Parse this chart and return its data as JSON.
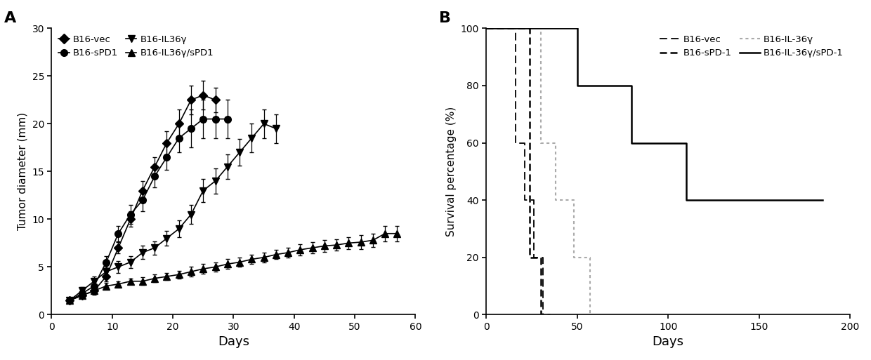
{
  "panel_A": {
    "label": "A",
    "xlabel": "Days",
    "ylabel": "Tumor diameter (mm)",
    "xlim": [
      2,
      60
    ],
    "ylim": [
      0,
      30
    ],
    "xticks": [
      0,
      10,
      20,
      30,
      40,
      50,
      60
    ],
    "yticks": [
      0,
      5,
      10,
      15,
      20,
      25,
      30
    ],
    "series": [
      {
        "label": "B16-vec",
        "marker": "D",
        "color": "#000000",
        "x": [
          3,
          5,
          7,
          9,
          11,
          13,
          15,
          17,
          19,
          21,
          23,
          25,
          27
        ],
        "y": [
          1.5,
          2.0,
          2.5,
          4.0,
          7.0,
          10.0,
          13.0,
          15.5,
          18.0,
          20.0,
          22.5,
          23.0,
          22.5
        ],
        "yerr": [
          0.3,
          0.3,
          0.4,
          0.5,
          0.6,
          0.8,
          1.0,
          1.0,
          1.2,
          1.5,
          1.5,
          1.5,
          1.3
        ]
      },
      {
        "label": "B16-sPD1",
        "marker": "o",
        "color": "#000000",
        "x": [
          3,
          5,
          7,
          9,
          11,
          13,
          15,
          17,
          19,
          21,
          23,
          25,
          27,
          29
        ],
        "y": [
          1.5,
          2.2,
          3.0,
          5.5,
          8.5,
          10.5,
          12.0,
          14.5,
          16.5,
          18.5,
          19.5,
          20.5,
          20.5,
          20.5
        ],
        "yerr": [
          0.3,
          0.3,
          0.5,
          0.6,
          0.8,
          1.0,
          1.2,
          1.2,
          1.3,
          1.5,
          2.0,
          2.0,
          2.0,
          2.0
        ]
      },
      {
        "label": "B16-IL36γ",
        "marker": "v",
        "color": "#000000",
        "x": [
          3,
          5,
          7,
          9,
          11,
          13,
          15,
          17,
          19,
          21,
          23,
          25,
          27,
          29,
          31,
          33,
          35,
          37
        ],
        "y": [
          1.5,
          2.5,
          3.5,
          4.5,
          5.0,
          5.5,
          6.5,
          7.0,
          8.0,
          9.0,
          10.5,
          13.0,
          14.0,
          15.5,
          17.0,
          18.5,
          20.0,
          19.5
        ],
        "yerr": [
          0.3,
          0.4,
          0.5,
          0.5,
          0.6,
          0.6,
          0.7,
          0.7,
          0.8,
          0.9,
          1.0,
          1.2,
          1.3,
          1.3,
          1.4,
          1.5,
          1.5,
          1.5
        ]
      },
      {
        "label": "B16-IL36γ/sPD1",
        "marker": "^",
        "color": "#000000",
        "x": [
          3,
          5,
          7,
          9,
          11,
          13,
          15,
          17,
          19,
          21,
          23,
          25,
          27,
          29,
          31,
          33,
          35,
          37,
          39,
          41,
          43,
          45,
          47,
          49,
          51,
          53,
          55,
          57
        ],
        "y": [
          1.5,
          2.0,
          2.5,
          3.0,
          3.2,
          3.5,
          3.5,
          3.8,
          4.0,
          4.2,
          4.5,
          4.8,
          5.0,
          5.3,
          5.5,
          5.8,
          6.0,
          6.3,
          6.5,
          6.8,
          7.0,
          7.2,
          7.3,
          7.5,
          7.6,
          7.8,
          8.5,
          8.5
        ],
        "yerr": [
          0.2,
          0.3,
          0.3,
          0.3,
          0.3,
          0.3,
          0.4,
          0.4,
          0.4,
          0.4,
          0.5,
          0.5,
          0.5,
          0.5,
          0.5,
          0.5,
          0.5,
          0.5,
          0.5,
          0.6,
          0.6,
          0.6,
          0.6,
          0.6,
          0.7,
          0.7,
          0.8,
          0.8
        ]
      }
    ]
  },
  "panel_B": {
    "label": "B",
    "xlabel": "Days",
    "ylabel": "Survival percentage (%)",
    "xlim": [
      0,
      200
    ],
    "ylim": [
      0,
      100
    ],
    "xticks": [
      0,
      50,
      100,
      150,
      200
    ],
    "yticks": [
      0,
      20,
      40,
      60,
      80,
      100
    ],
    "series": [
      {
        "label": "B16-vec",
        "linestyle": "--",
        "color": "#000000",
        "linewidth": 1.3,
        "dash_style": [
          6,
          3
        ],
        "x": [
          0,
          16,
          16,
          21,
          21,
          26,
          26,
          31,
          31
        ],
        "y": [
          100,
          100,
          60,
          60,
          40,
          40,
          20,
          20,
          0
        ]
      },
      {
        "label": "B16-sPD-1",
        "linestyle": "--",
        "color": "#000000",
        "linewidth": 1.8,
        "dash_style": [
          4,
          2
        ],
        "x": [
          0,
          24,
          24,
          30,
          30,
          35,
          35
        ],
        "y": [
          100,
          100,
          20,
          20,
          0,
          0,
          0
        ]
      },
      {
        "label": "B16-IL-36γ",
        "linestyle": ":",
        "color": "#aaaaaa",
        "linewidth": 1.5,
        "dash_style": [
          2,
          2
        ],
        "x": [
          0,
          30,
          30,
          38,
          38,
          48,
          48,
          57,
          57
        ],
        "y": [
          100,
          100,
          60,
          60,
          40,
          40,
          20,
          20,
          0
        ]
      },
      {
        "label": "B16-IL-36γ/sPD-1",
        "linestyle": "-",
        "color": "#000000",
        "linewidth": 1.8,
        "dash_style": [],
        "x": [
          0,
          50,
          50,
          80,
          80,
          110,
          110,
          185
        ],
        "y": [
          100,
          100,
          80,
          80,
          60,
          60,
          40,
          40
        ]
      }
    ]
  }
}
